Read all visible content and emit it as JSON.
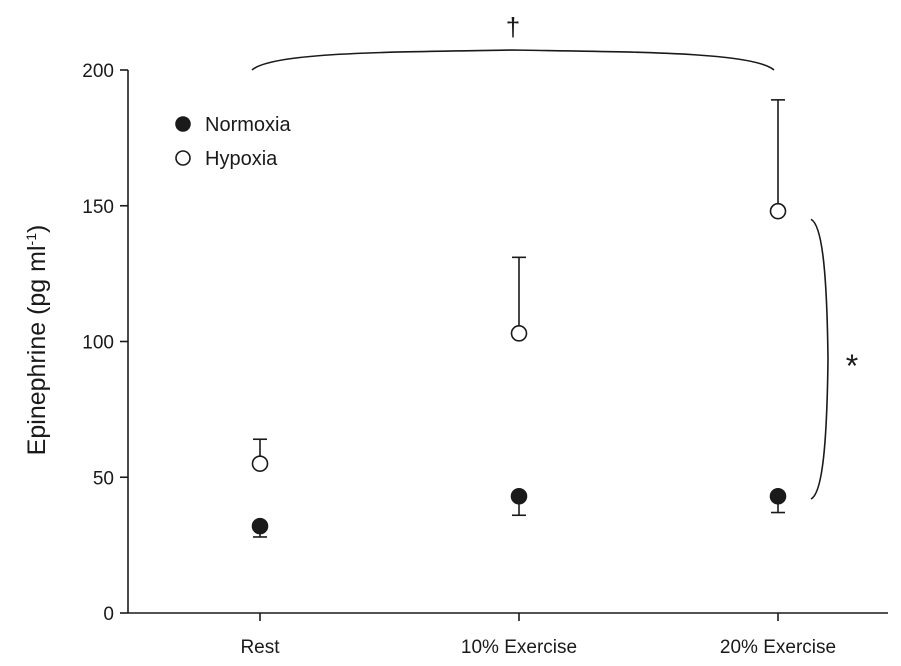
{
  "chart_data": {
    "type": "scatter",
    "categories": [
      "Rest",
      "10% Exercise",
      "20% Exercise"
    ],
    "ylabel_main": "Epinephrine (pg ml",
    "ylabel_sup": "-1",
    "ylabel_close": ")",
    "xlabel": "",
    "ylim": [
      0,
      200
    ],
    "yticks": [
      "0",
      "50",
      "100",
      "150",
      "200"
    ],
    "grid": false,
    "legend_position": "top-left",
    "series": [
      {
        "name": "Normoxia",
        "marker": "filled-circle",
        "color": "#1a1a1a",
        "values": [
          32,
          43,
          43
        ],
        "error_minus": [
          4,
          7,
          6
        ],
        "error_plus": [
          0,
          0,
          0
        ]
      },
      {
        "name": "Hypoxia",
        "marker": "open-circle",
        "color": "#1a1a1a",
        "values": [
          55,
          103,
          148
        ],
        "error_minus": [
          0,
          0,
          0
        ],
        "error_plus": [
          9,
          28,
          41
        ]
      }
    ],
    "annotations": {
      "dagger": "†",
      "asterisk": "*"
    }
  }
}
